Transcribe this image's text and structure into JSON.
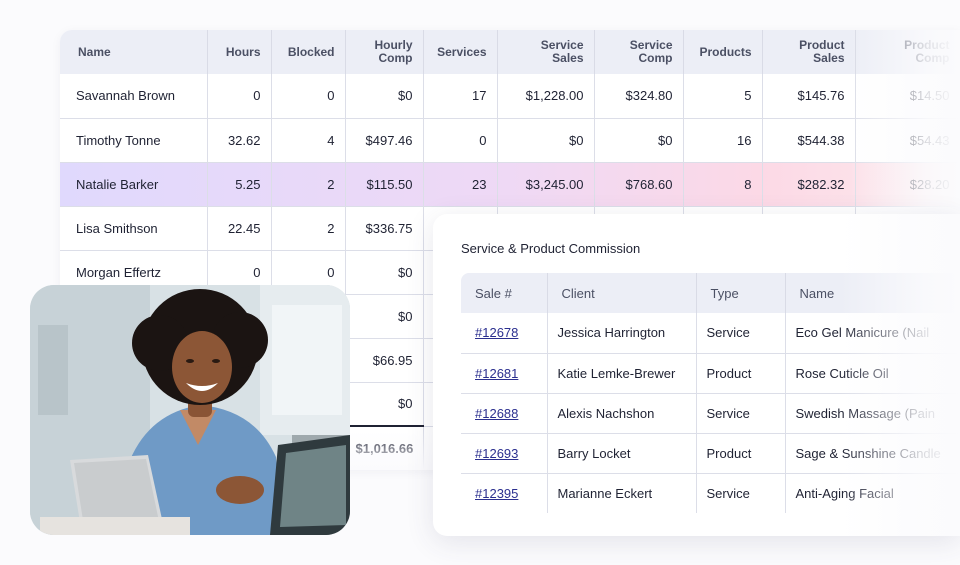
{
  "payroll": {
    "columns": [
      "Name",
      "Hours",
      "Blocked",
      "Hourly Comp",
      "Services",
      "Service Sales",
      "Service Comp",
      "Products",
      "Product Sales",
      "Product Comp"
    ],
    "columns_split": [
      [
        "Name",
        ""
      ],
      [
        "Hours",
        ""
      ],
      [
        "Blocked",
        ""
      ],
      [
        "Hourly",
        "Comp"
      ],
      [
        "Services",
        ""
      ],
      [
        "Service",
        "Sales"
      ],
      [
        "Service",
        "Comp"
      ],
      [
        "Products",
        ""
      ],
      [
        "Product",
        "Sales"
      ],
      [
        "Product",
        "Comp"
      ]
    ],
    "rows": [
      [
        "Savannah Brown",
        "0",
        "0",
        "$0",
        "17",
        "$1,228.00",
        "$324.80",
        "5",
        "$145.76",
        "$14.50"
      ],
      [
        "Timothy Tonne",
        "32.62",
        "4",
        "$497.46",
        "0",
        "$0",
        "$0",
        "16",
        "$544.38",
        "$54.43"
      ],
      [
        "Natalie Barker",
        "5.25",
        "2",
        "$115.50",
        "23",
        "$3,245.00",
        "$768.60",
        "8",
        "$282.32",
        "$28.20"
      ],
      [
        "Lisa Smithson",
        "22.45",
        "2",
        "$336.75",
        "",
        "",
        "",
        "",
        "",
        ""
      ],
      [
        "Morgan Effertz",
        "0",
        "0",
        "$0",
        "",
        "",
        "",
        "",
        "",
        ""
      ],
      [
        "",
        "",
        "",
        "$0",
        "",
        "",
        "",
        "",
        "",
        ""
      ],
      [
        "",
        "",
        "",
        "$66.95",
        "",
        "",
        "",
        "",
        "",
        ""
      ],
      [
        "",
        "",
        "",
        "$0",
        "",
        "",
        "",
        "",
        "",
        ""
      ]
    ],
    "total": [
      "",
      "",
      "",
      "$1,016.66",
      "",
      "",
      "",
      "",
      "",
      ""
    ],
    "highlight_row": 2
  },
  "commission": {
    "title": "Service & Product Commission",
    "columns": [
      "Sale #",
      "Client",
      "Type",
      "Name"
    ],
    "rows": [
      [
        "#12678",
        "Jessica Harrington",
        "Service",
        "Eco Gel Manicure (Nail"
      ],
      [
        "#12681",
        "Katie Lemke-Brewer",
        "Product",
        "Rose Cuticle Oil"
      ],
      [
        "#12688",
        "Alexis Nachshon",
        "Service",
        "Swedish Massage (Pain"
      ],
      [
        "#12693",
        "Barry Locket",
        "Product",
        "Sage & Sunshine Candle"
      ],
      [
        "#12395",
        "Marianne Eckert",
        "Service",
        "Anti-Aging Facial"
      ]
    ]
  },
  "colors": {
    "header_bg": "#eceef6",
    "link": "#2b2f8f",
    "highlight_start": "#e0d9fd",
    "highlight_end": "#fbe9ec"
  },
  "photo": {
    "subject": "smiling woman with laptop",
    "icon": "photo-image"
  }
}
